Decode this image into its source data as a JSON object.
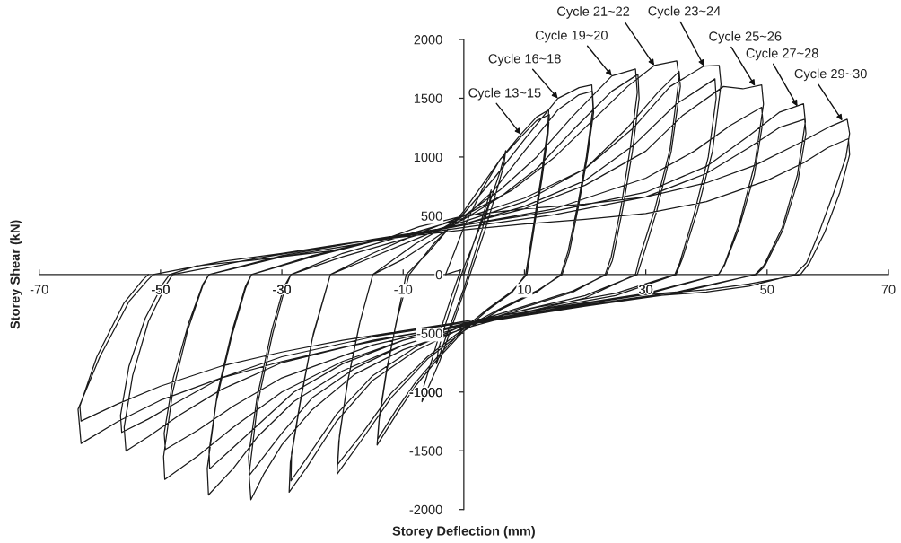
{
  "chart_data": {
    "type": "line",
    "xlabel": "Storey Deflection (mm)",
    "ylabel": "Storey Shear (kN)",
    "xlim": [
      -70,
      70
    ],
    "ylim": [
      -2000,
      2000
    ],
    "xticks": [
      -70,
      -50,
      -30,
      -10,
      10,
      30,
      50,
      70
    ],
    "yticks": [
      -2000,
      -1500,
      -1000,
      -500,
      0,
      500,
      1000,
      1500,
      2000
    ],
    "grid": false,
    "series": [
      {
        "color": "#1a1a1a",
        "x": [
          0,
          1.5,
          3,
          4.5,
          4.2,
          3,
          1.5,
          0,
          -1.5,
          -3,
          -4.5,
          -4.2,
          -3,
          -1.5,
          0,
          1.5,
          3,
          4.5,
          6,
          6.9,
          6.6,
          5,
          3.5,
          2,
          0.5,
          -1,
          -2.5,
          -4,
          -5.5,
          -6.9,
          -6.6,
          -5,
          -3.5,
          -2,
          -0.5,
          -3,
          0,
          3,
          6,
          9.4,
          12,
          14,
          13.8,
          12.8,
          11.5,
          10.2,
          8,
          4,
          0,
          -4,
          -8,
          -11,
          -14.3,
          -14,
          -12.8,
          -11.2,
          -9.5,
          -6,
          -3,
          0,
          3,
          6,
          9.4,
          12,
          14.1,
          13.9,
          12.9,
          11.6,
          10.4,
          8,
          4,
          0,
          -4,
          -8,
          -11,
          -14.2,
          -13.9,
          -12.7,
          -11,
          -9,
          -5,
          0,
          5,
          10,
          15.5,
          19,
          21.1,
          21.3,
          20.2,
          18.8,
          17.2,
          16,
          12,
          6,
          0,
          -6,
          -12,
          -17,
          -20.9,
          -20.6,
          -19.2,
          -17.2,
          -15,
          -10,
          -5,
          0,
          5,
          10,
          15.5,
          19,
          21.2,
          21.4,
          20.3,
          18.9,
          17.4,
          16.2,
          12,
          6,
          0,
          -6,
          -12,
          -17,
          -20.8,
          -20.5,
          -19.1,
          -17.1,
          -15,
          -8,
          0,
          6,
          12,
          18,
          24.4,
          28.3,
          28.6,
          27.5,
          26,
          24.3,
          23.3,
          18,
          10,
          0,
          -8,
          -15,
          -21,
          -26,
          -28.8,
          -28.6,
          -27,
          -25,
          -22,
          -15,
          -8,
          0,
          6,
          12,
          18,
          24.4,
          28.7,
          28.9,
          27.8,
          26.2,
          24.5,
          23.5,
          18,
          10,
          0,
          -8,
          -15,
          -21,
          -26,
          -28.5,
          -28.4,
          -26.8,
          -24.8,
          -22,
          -15,
          -8,
          0,
          8,
          15,
          22,
          27,
          31.4,
          35.1,
          35.5,
          34,
          31.5,
          29,
          28.3,
          20,
          10,
          0,
          -10,
          -18,
          -25,
          -30,
          -33,
          -35.1,
          -35.4,
          -34,
          -31.5,
          -29.5,
          -28.5,
          -20,
          -10,
          0,
          10,
          20,
          27,
          32,
          35.5,
          35.7,
          34.2,
          31.8,
          29.4,
          28.6,
          20,
          10,
          0,
          -10,
          -18,
          -25,
          -30,
          -35.3,
          -35.5,
          -34.1,
          -31.7,
          -29.7,
          -28.5,
          -20,
          -10,
          0,
          10,
          20,
          28,
          34,
          39.6,
          42.1,
          42.4,
          41,
          38.5,
          36,
          35,
          25,
          12,
          0,
          -10,
          -20,
          -28,
          -34,
          -38,
          -42.1,
          -42.3,
          -40.8,
          -38.3,
          -36,
          -35,
          -25,
          -15,
          0,
          10,
          20,
          28,
          35,
          41.4,
          41.6,
          40.3,
          37.9,
          35.6,
          34.8,
          25,
          12,
          0,
          -10,
          -20,
          -28,
          -35,
          -41.9,
          -42,
          -40.6,
          -38.2,
          -36,
          -35,
          -25,
          -15,
          0,
          10,
          20,
          30,
          36,
          42.8,
          46,
          49.1,
          49.4,
          48,
          45.5,
          43,
          42,
          30,
          15,
          0,
          -10,
          -20,
          -30,
          -38,
          -44,
          -49.3,
          -49.5,
          -48,
          -45.5,
          -43,
          -42,
          -30,
          -15,
          0,
          15,
          30,
          38,
          44,
          49.1,
          49.3,
          47.9,
          45.4,
          43,
          42,
          30,
          15,
          0,
          -15,
          -30,
          -38,
          -44,
          -49.2,
          -49.4,
          -47.9,
          -45.4,
          -43,
          -42,
          -30,
          -15,
          0,
          15,
          30,
          40,
          47,
          52,
          56,
          56.3,
          55,
          52.5,
          49.5,
          48,
          35,
          20,
          0,
          -15,
          -30,
          -40,
          -47,
          -52,
          -55.7,
          -56,
          -54.6,
          -52,
          -49,
          -48,
          -35,
          -20,
          0,
          15,
          30,
          40,
          47,
          52,
          56.2,
          56.4,
          55.1,
          52.6,
          49.6,
          48.2,
          35,
          20,
          0,
          -15,
          -30,
          -40,
          -47,
          -52,
          -56.4,
          -56.6,
          -55.2,
          -52.5,
          -49.5,
          -48.5,
          -44,
          -35,
          -22,
          -12,
          -7.4,
          0,
          10,
          20,
          30,
          40,
          48,
          55,
          60,
          63.2,
          63.6,
          63,
          61,
          58.5,
          56.5,
          54.6,
          47,
          40,
          32,
          20,
          10,
          0,
          -10,
          -20,
          -30,
          -40,
          -50,
          -57,
          -63.1,
          -63.6,
          -60,
          -55.2,
          -52.2,
          -51.2,
          -40,
          -30,
          -20,
          -10,
          0,
          10,
          20,
          30,
          40,
          50,
          56,
          60,
          63.4,
          63.6,
          62,
          59.5,
          57,
          55.5,
          47,
          40,
          30,
          20,
          10,
          0,
          -10,
          -20,
          -30,
          -40,
          -50,
          -57,
          -63.1,
          -63.3,
          -60.5,
          -56,
          -53,
          -52
        ],
        "values": [
          0,
          250,
          480,
          720,
          600,
          380,
          130,
          -120,
          -330,
          -540,
          -760,
          -640,
          -420,
          -180,
          60,
          250,
          450,
          650,
          880,
          1054,
          930,
          640,
          380,
          150,
          -80,
          -300,
          -520,
          -740,
          -920,
          -1082,
          -950,
          -680,
          -420,
          -180,
          40,
          0,
          400,
          720,
          980,
          1193,
          1340,
          1400,
          1230,
          850,
          420,
          0,
          -150,
          -300,
          -480,
          -700,
          -950,
          -1180,
          -1451,
          -1250,
          -850,
          -420,
          0,
          180,
          360,
          540,
          760,
          980,
          1170,
          1310,
          1360,
          1200,
          820,
          400,
          0,
          -140,
          -290,
          -460,
          -680,
          -920,
          -1140,
          -1400,
          -1200,
          -800,
          -380,
          0,
          260,
          520,
          820,
          1150,
          1499,
          1590,
          1614,
          1420,
          1000,
          600,
          200,
          0,
          -150,
          -300,
          -480,
          -720,
          -1050,
          -1420,
          -1700,
          -1420,
          -920,
          -420,
          0,
          130,
          300,
          480,
          720,
          1050,
          1400,
          1530,
          1560,
          1380,
          980,
          580,
          190,
          0,
          -140,
          -290,
          -460,
          -700,
          -1010,
          -1370,
          -1616,
          -1370,
          -900,
          -400,
          0,
          260,
          500,
          720,
          1000,
          1350,
          1690,
          1749,
          1550,
          1100,
          600,
          150,
          0,
          -150,
          -280,
          -450,
          -650,
          -900,
          -1250,
          -1650,
          -1853,
          -1600,
          -1100,
          -550,
          0,
          150,
          300,
          470,
          660,
          900,
          1230,
          1560,
          1703,
          1500,
          1050,
          560,
          120,
          0,
          -140,
          -270,
          -430,
          -620,
          -860,
          -1190,
          -1570,
          -1756,
          -1520,
          -1030,
          -500,
          0,
          180,
          340,
          500,
          720,
          1000,
          1350,
          1600,
          1779,
          1817,
          1677,
          1067,
          559,
          151,
          0,
          -200,
          -320,
          -460,
          -640,
          -850,
          -1150,
          -1450,
          -1700,
          -1917,
          -1700,
          -1100,
          -500,
          -120,
          0,
          150,
          300,
          450,
          620,
          900,
          1250,
          1550,
          1728,
          1600,
          1050,
          540,
          130,
          0,
          -180,
          -300,
          -440,
          -600,
          -800,
          -1050,
          -1350,
          -1705,
          -1550,
          -1050,
          -480,
          -110,
          0,
          180,
          330,
          480,
          650,
          900,
          1250,
          1600,
          1774,
          1779,
          1620,
          1050,
          540,
          130,
          0,
          -180,
          -300,
          -440,
          -600,
          -820,
          -1080,
          -1380,
          -1650,
          -1876,
          -1650,
          -1080,
          -530,
          -120,
          0,
          150,
          280,
          430,
          580,
          800,
          1100,
          1450,
          1665,
          1500,
          1000,
          500,
          100,
          0,
          -160,
          -280,
          -420,
          -560,
          -760,
          -1000,
          -1330,
          -1654,
          -1500,
          -1000,
          -480,
          -100,
          0,
          160,
          280,
          430,
          560,
          760,
          1050,
          1350,
          1600,
          1580,
          1614,
          1450,
          950,
          450,
          90,
          0,
          -170,
          -290,
          -430,
          -560,
          -740,
          -1000,
          -1300,
          -1550,
          -1744,
          -1550,
          -1000,
          -470,
          -90,
          0,
          160,
          300,
          420,
          560,
          820,
          1050,
          1270,
          1423,
          1300,
          850,
          400,
          80,
          0,
          -160,
          -280,
          -420,
          -600,
          -880,
          -1120,
          -1330,
          -1489,
          -1350,
          -880,
          -420,
          -80,
          0,
          150,
          280,
          420,
          540,
          700,
          920,
          1180,
          1380,
          1453,
          1300,
          850,
          400,
          80,
          0,
          -160,
          -270,
          -430,
          -560,
          -750,
          -980,
          -1200,
          -1380,
          -1502,
          -1300,
          -860,
          -400,
          -80,
          0,
          130,
          260,
          400,
          510,
          660,
          860,
          1080,
          1250,
          1321,
          1200,
          800,
          380,
          70,
          0,
          -150,
          -260,
          -410,
          -530,
          -700,
          -880,
          -1080,
          -1230,
          -1344,
          -1200,
          -780,
          -370,
          -70,
          0,
          75,
          120,
          200,
          320,
          406,
          500,
          560,
          600,
          660,
          780,
          930,
          1110,
          1250,
          1321,
          1200,
          1000,
          700,
          350,
          100,
          0,
          -100,
          -150,
          -180,
          -260,
          -340,
          -430,
          -520,
          -620,
          -740,
          -880,
          -1070,
          -1250,
          -1438,
          -1146,
          -700,
          -230,
          -52,
          0,
          110,
          180,
          260,
          320,
          380,
          430,
          470,
          520,
          620,
          800,
          950,
          1080,
          1156,
          1020,
          700,
          360,
          100,
          0,
          -80,
          -130,
          -170,
          -240,
          -320,
          -400,
          -480,
          -560,
          -660,
          -780,
          -950,
          -1100,
          -1247,
          -1120,
          -700,
          -240,
          -50,
          0
        ]
      }
    ],
    "annotations": [
      {
        "text": "Cycle 13~15",
        "x": 9.4,
        "y": 1193
      },
      {
        "text": "Cycle 16~18",
        "x": 15.5,
        "y": 1499
      },
      {
        "text": "Cycle 19~20",
        "x": 24.4,
        "y": 1690
      },
      {
        "text": "Cycle 21~22",
        "x": 31.4,
        "y": 1779
      },
      {
        "text": "Cycle 23~24",
        "x": 39.6,
        "y": 1774
      },
      {
        "text": "Cycle 25~26",
        "x": 48,
        "y": 1605
      },
      {
        "text": "Cycle 27~28",
        "x": 55,
        "y": 1431
      },
      {
        "text": "Cycle 29~30",
        "x": 62.4,
        "y": 1310
      }
    ]
  }
}
